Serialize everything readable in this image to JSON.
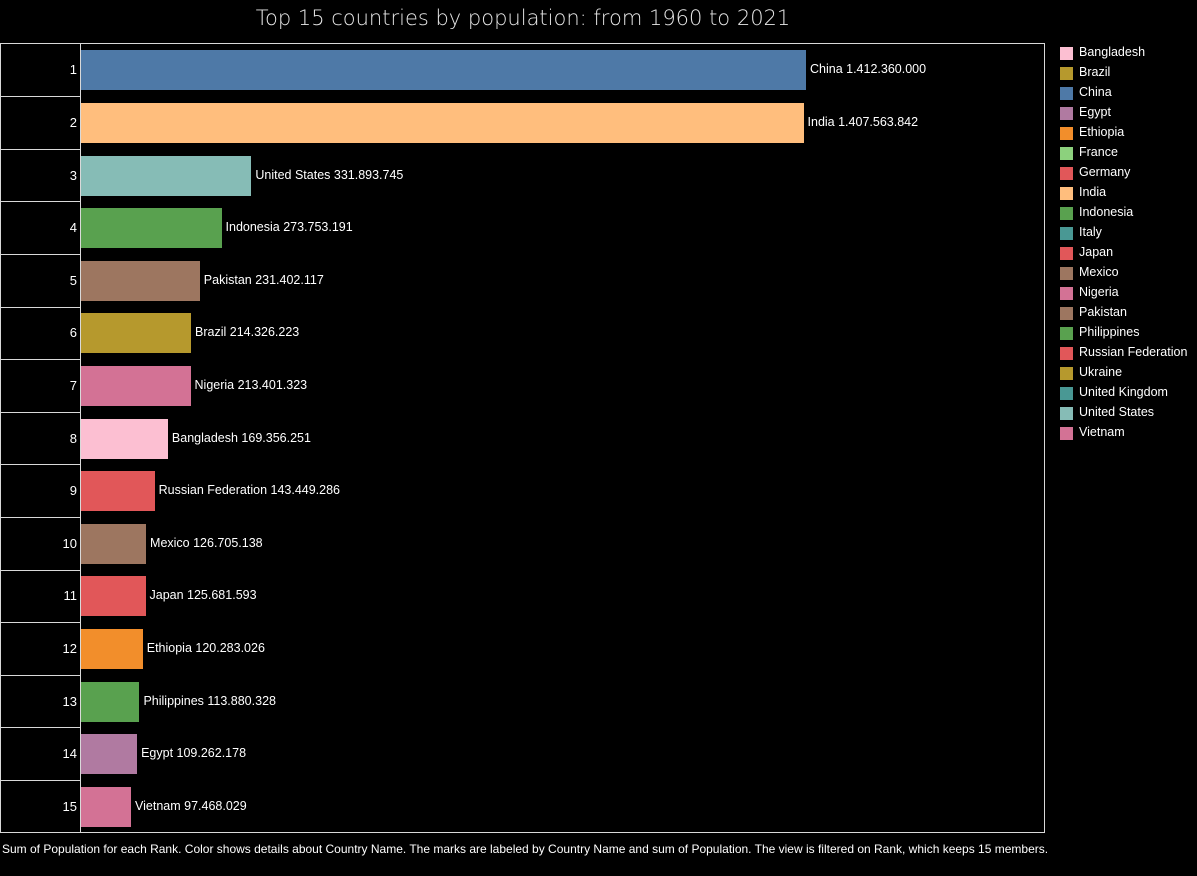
{
  "chart_data": {
    "type": "bar",
    "orientation": "horizontal",
    "title": "Top 15 countries by population: from 1960 to 2021",
    "categories": [
      "1",
      "2",
      "3",
      "4",
      "5",
      "6",
      "7",
      "8",
      "9",
      "10",
      "11",
      "12",
      "13",
      "14",
      "15"
    ],
    "countries": [
      "China",
      "India",
      "United States",
      "Indonesia",
      "Pakistan",
      "Brazil",
      "Nigeria",
      "Bangladesh",
      "Russian Federation",
      "Mexico",
      "Japan",
      "Ethiopia",
      "Philippines",
      "Egypt",
      "Vietnam"
    ],
    "values": [
      1412360000,
      1407563842,
      331893745,
      273753191,
      231402117,
      214326223,
      213401323,
      169356251,
      143449286,
      126705138,
      125681593,
      120283026,
      113880328,
      109262178,
      97468029
    ],
    "data_labels": [
      "China 1.412.360.000",
      "India 1.407.563.842",
      "United States 331.893.745",
      "Indonesia 273.753.191",
      "Pakistan 231.402.117",
      "Brazil 214.326.223",
      "Nigeria 213.401.323",
      "Bangladesh 169.356.251",
      "Russian Federation 143.449.286",
      "Mexico 126.705.138",
      "Japan 125.681.593",
      "Ethiopia 120.283.026",
      "Philippines 113.880.328",
      "Egypt 109.262.178",
      "Vietnam 97.468.029"
    ],
    "xlim": [
      0,
      1412360000
    ],
    "grid": false,
    "legend_position": "right",
    "legend": [
      {
        "name": "Bangladesh",
        "color": "#fcbfd2"
      },
      {
        "name": "Brazil",
        "color": "#b6992d"
      },
      {
        "name": "China",
        "color": "#4e79a7"
      },
      {
        "name": "Egypt",
        "color": "#b07aa1"
      },
      {
        "name": "Ethiopia",
        "color": "#f28e2b"
      },
      {
        "name": "France",
        "color": "#8cd17d"
      },
      {
        "name": "Germany",
        "color": "#e15759"
      },
      {
        "name": "India",
        "color": "#ffbe7d"
      },
      {
        "name": "Indonesia",
        "color": "#59a14f"
      },
      {
        "name": "Italy",
        "color": "#499894"
      },
      {
        "name": "Japan",
        "color": "#e15759"
      },
      {
        "name": "Mexico",
        "color": "#9d7660"
      },
      {
        "name": "Nigeria",
        "color": "#d37295"
      },
      {
        "name": "Pakistan",
        "color": "#9d7660"
      },
      {
        "name": "Philippines",
        "color": "#59a14f"
      },
      {
        "name": "Russian Federation",
        "color": "#e15759"
      },
      {
        "name": "Ukraine",
        "color": "#b6992d"
      },
      {
        "name": "United Kingdom",
        "color": "#499894"
      },
      {
        "name": "United States",
        "color": "#86bcb6"
      },
      {
        "name": "Vietnam",
        "color": "#d37295"
      }
    ]
  },
  "caption": "Sum of Population for each Rank.  Color shows details about Country Name.  The marks are labeled by Country Name and sum of Population. The view is filtered on Rank, which keeps 15 members."
}
